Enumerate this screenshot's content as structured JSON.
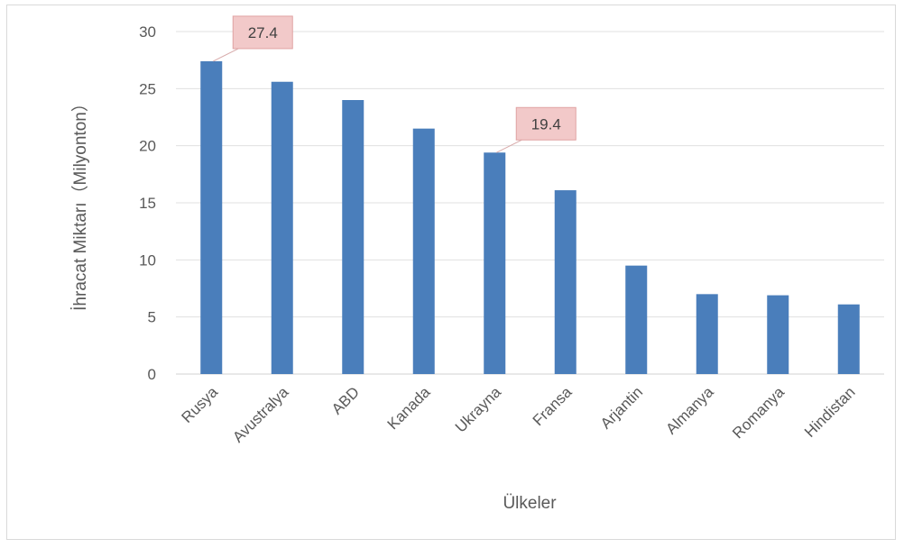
{
  "chart_data": {
    "type": "bar",
    "categories": [
      "Rusya",
      "Avustralya",
      "ABD",
      "Kanada",
      "Ukrayna",
      "Fransa",
      "Arjantin",
      "Almanya",
      "Romanya",
      "Hindistan"
    ],
    "values": [
      27.4,
      25.6,
      24.0,
      21.5,
      19.4,
      16.1,
      9.5,
      7.0,
      6.9,
      6.1
    ],
    "xlabel": "Ülkeler",
    "ylabel": "İhracat Miktarı（Milyonton）",
    "ylim": [
      0,
      30
    ],
    "yticks": [
      0,
      5,
      10,
      15,
      20,
      25,
      30
    ],
    "grid": true,
    "legend": "none",
    "data_labels": [
      {
        "category": "Rusya",
        "text": "27.4"
      },
      {
        "category": "Ukrayna",
        "text": "19.4"
      }
    ],
    "colors": {
      "bar": "#4a7ebb",
      "grid": "#e0e0e0",
      "label_fill": "#f2c9c9",
      "label_border": "#e0a3a3",
      "text": "#595959"
    }
  }
}
